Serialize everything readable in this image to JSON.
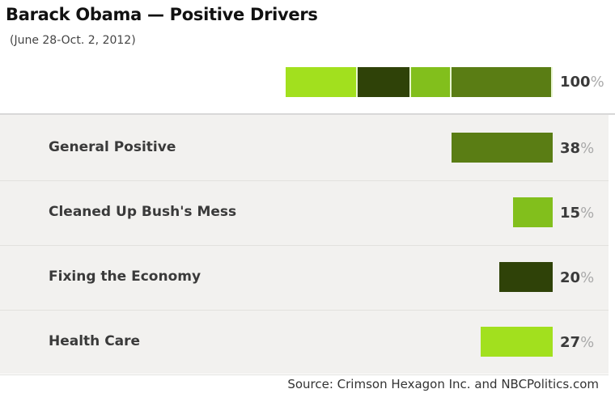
{
  "chart_data": {
    "type": "bar",
    "title": "Barack Obama — Positive Drivers",
    "subtitle": "(June 28-Oct. 2, 2012)",
    "total": {
      "value": 100,
      "label": "100",
      "unit": "%"
    },
    "stack_order": [
      3,
      2,
      1,
      0
    ],
    "categories": [
      "General Positive",
      "Cleaned Up Bush's Mess",
      "Fixing the Economy",
      "Health Care"
    ],
    "values": [
      38,
      15,
      20,
      27
    ],
    "colors": [
      "#5a7d14",
      "#82bf1c",
      "#2f4208",
      "#a2e01e"
    ],
    "unit": "%",
    "xlim": [
      0,
      100
    ],
    "source": "Source: Crimson Hexagon Inc. and NBCPolitics.com"
  }
}
